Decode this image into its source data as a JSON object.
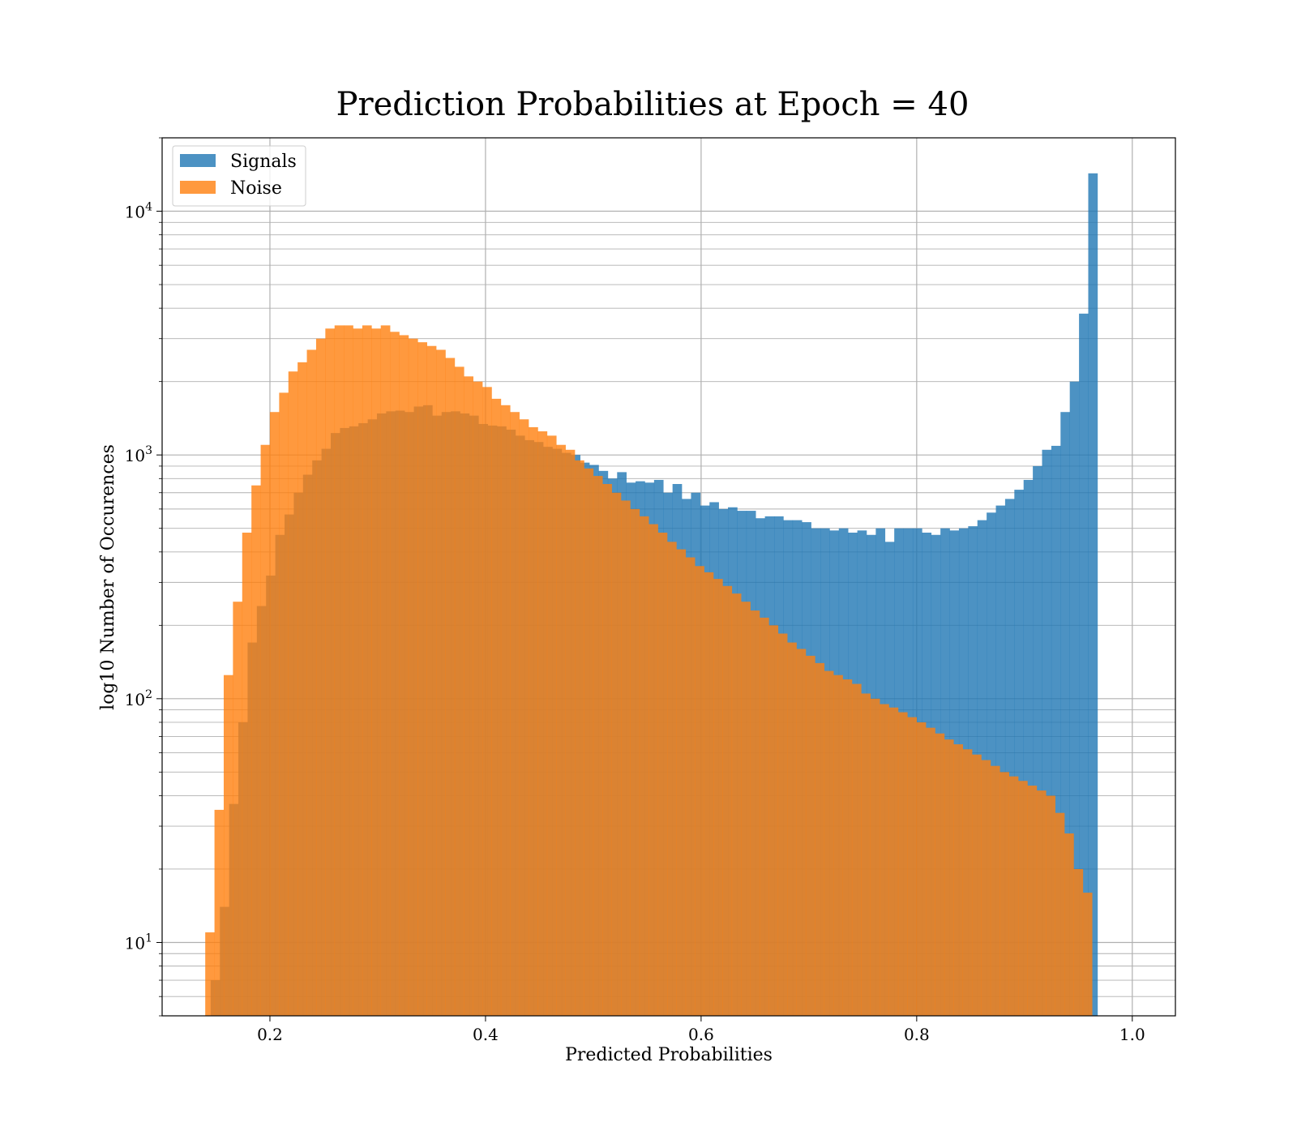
{
  "chart_data": {
    "type": "bar",
    "title": "Prediction Probabilities at Epoch = 40",
    "xlabel": "Predicted Probabilities",
    "ylabel": "log10 Number of Occurences",
    "yscale": "log",
    "xlim": [
      0.1,
      1.04
    ],
    "ylim": [
      5,
      20000
    ],
    "grid": true,
    "legend_position": "top-left",
    "x_ticks": [
      {
        "value": 0.2,
        "label": "0.2"
      },
      {
        "value": 0.4,
        "label": "0.4"
      },
      {
        "value": 0.6,
        "label": "0.6"
      },
      {
        "value": 0.8,
        "label": "0.8"
      },
      {
        "value": 1.0,
        "label": "1.0"
      }
    ],
    "y_ticks": [
      {
        "value": 10,
        "base": "10",
        "exponent": "1"
      },
      {
        "value": 100,
        "base": "10",
        "exponent": "2"
      },
      {
        "value": 1000,
        "base": "10",
        "exponent": "3"
      },
      {
        "value": 10000,
        "base": "10",
        "exponent": "4"
      }
    ],
    "bin_width": 0.00857,
    "series": [
      {
        "name": "Signals",
        "color": "#1f77b4",
        "bin_start": 0.145,
        "values": [
          7,
          14,
          37,
          80,
          170,
          240,
          320,
          470,
          570,
          700,
          830,
          950,
          1060,
          1230,
          1290,
          1310,
          1350,
          1400,
          1480,
          1510,
          1520,
          1500,
          1580,
          1600,
          1450,
          1500,
          1510,
          1480,
          1450,
          1340,
          1320,
          1310,
          1270,
          1200,
          1150,
          1130,
          1080,
          1060,
          1020,
          1000,
          930,
          910,
          860,
          800,
          850,
          770,
          780,
          770,
          790,
          700,
          760,
          660,
          700,
          620,
          640,
          600,
          610,
          590,
          590,
          550,
          560,
          560,
          540,
          540,
          530,
          500,
          500,
          490,
          500,
          480,
          490,
          470,
          500,
          440,
          500,
          500,
          500,
          480,
          470,
          500,
          490,
          500,
          510,
          540,
          580,
          620,
          660,
          720,
          790,
          900,
          1050,
          1090,
          1500,
          2000,
          3800,
          14300
        ]
      },
      {
        "name": "Noise",
        "color": "#ff7f0e",
        "bin_start": 0.14,
        "values": [
          11,
          35,
          125,
          250,
          480,
          750,
          1100,
          1500,
          1800,
          2200,
          2400,
          2700,
          3000,
          3300,
          3400,
          3400,
          3300,
          3400,
          3300,
          3400,
          3200,
          3100,
          3000,
          2900,
          2800,
          2700,
          2500,
          2300,
          2100,
          2000,
          1900,
          1700,
          1600,
          1500,
          1400,
          1300,
          1250,
          1200,
          1100,
          1050,
          950,
          880,
          820,
          760,
          700,
          650,
          600,
          560,
          520,
          480,
          440,
          410,
          380,
          350,
          330,
          310,
          290,
          270,
          250,
          230,
          215,
          200,
          185,
          170,
          160,
          150,
          140,
          130,
          125,
          120,
          115,
          105,
          100,
          95,
          92,
          88,
          84,
          80,
          76,
          72,
          68,
          65,
          62,
          59,
          56,
          53,
          50,
          48,
          46,
          44,
          42,
          40,
          34,
          28,
          20,
          16
        ]
      }
    ]
  }
}
